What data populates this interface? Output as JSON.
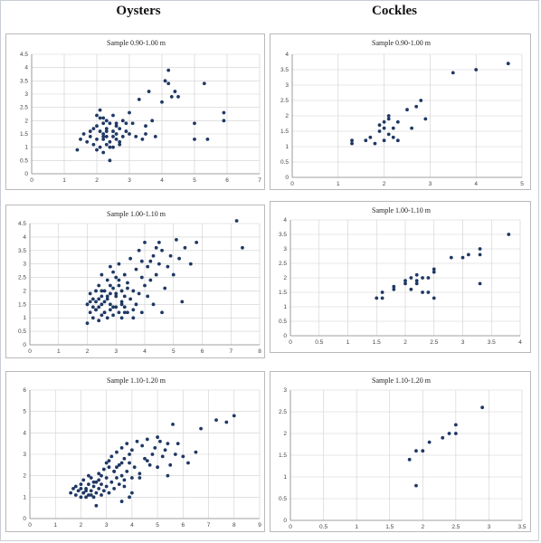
{
  "headers": {
    "left": "Oysters",
    "right": "Cockles"
  },
  "colors": {
    "point": "#1f3864",
    "grid": "#cfcfcf",
    "axis": "#8a8a8a",
    "border": "#b9b9b9"
  },
  "chart_data": [
    {
      "type": "scatter",
      "title": "Sample 0.90-1.00 m",
      "species": "Oysters",
      "xlim": [
        0,
        7
      ],
      "ylim": [
        0,
        4.5
      ],
      "xticks": [
        0,
        1,
        2,
        3,
        4,
        5,
        6,
        7
      ],
      "yticks": [
        0,
        0.5,
        1,
        1.5,
        2,
        2.5,
        3,
        3.5,
        4,
        4.5
      ],
      "ytick_labels": [
        "0",
        "0.5",
        "1",
        "1.5",
        "2",
        "2.5",
        "3",
        "3.5",
        "4",
        "4.5"
      ],
      "x": [
        1.4,
        1.5,
        1.6,
        1.7,
        1.8,
        1.8,
        1.9,
        1.9,
        2.0,
        2.0,
        2.0,
        2.1,
        2.1,
        2.1,
        2.2,
        2.2,
        2.2,
        2.2,
        2.3,
        2.3,
        2.3,
        2.3,
        2.4,
        2.4,
        2.4,
        2.5,
        2.5,
        2.5,
        2.6,
        2.6,
        2.6,
        2.7,
        2.7,
        2.8,
        2.8,
        2.9,
        2.9,
        3.0,
        3.0,
        3.1,
        3.2,
        3.3,
        3.4,
        3.5,
        3.5,
        3.6,
        3.7,
        3.8,
        4.0,
        4.1,
        4.2,
        4.2,
        4.3,
        4.4,
        4.5,
        5.0,
        5.0,
        5.3,
        5.4,
        5.9,
        5.9,
        2.0,
        2.1,
        2.2,
        2.3,
        2.5,
        2.7,
        2.4,
        2.6,
        2.2
      ],
      "y": [
        0.9,
        1.3,
        1.5,
        1.2,
        1.6,
        1.4,
        1.1,
        1.7,
        0.9,
        1.3,
        1.8,
        1.0,
        1.6,
        2.1,
        0.8,
        1.3,
        1.9,
        1.5,
        1.1,
        1.7,
        2.0,
        1.4,
        0.5,
        1.2,
        1.9,
        1.0,
        1.6,
        2.2,
        1.3,
        1.8,
        1.5,
        1.1,
        1.7,
        1.4,
        2.0,
        1.6,
        1.9,
        1.5,
        2.3,
        1.9,
        1.4,
        2.8,
        1.3,
        1.5,
        1.8,
        3.1,
        2.0,
        1.4,
        2.7,
        3.5,
        3.9,
        3.4,
        2.9,
        3.1,
        2.9,
        1.9,
        1.3,
        3.4,
        1.3,
        2.3,
        2.0,
        2.2,
        2.4,
        2.1,
        1.6,
        1.4,
        1.2,
        1.0,
        1.9,
        1.4
      ]
    },
    {
      "type": "scatter",
      "title": "Sample 0.90-1.00 m",
      "species": "Cockles",
      "xlim": [
        0,
        5
      ],
      "ylim": [
        0,
        4
      ],
      "xticks": [
        0,
        1,
        2,
        3,
        4,
        5
      ],
      "yticks": [
        0,
        0.5,
        1,
        1.5,
        2,
        2.5,
        3,
        3.5,
        4
      ],
      "ytick_labels": [
        "0",
        "0.5",
        "1",
        "1.5",
        "2",
        "2.5",
        "3",
        "3.5",
        "4"
      ],
      "x": [
        1.3,
        1.3,
        1.6,
        1.7,
        1.8,
        1.9,
        1.9,
        2.0,
        2.0,
        2.0,
        2.1,
        2.1,
        2.1,
        2.2,
        2.2,
        2.3,
        2.3,
        2.5,
        2.6,
        2.7,
        2.8,
        2.9,
        3.5,
        4.0,
        4.7
      ],
      "y": [
        1.2,
        1.1,
        1.2,
        1.3,
        1.1,
        1.5,
        1.7,
        1.8,
        1.6,
        1.2,
        1.9,
        1.4,
        2.0,
        1.3,
        1.6,
        1.8,
        1.2,
        2.2,
        1.6,
        2.3,
        2.5,
        1.9,
        3.4,
        3.5,
        3.7
      ]
    },
    {
      "type": "scatter",
      "title": "Sample 1.00-1.10 m",
      "species": "Oysters",
      "xlim": [
        0,
        8
      ],
      "ylim": [
        0,
        4.5
      ],
      "xticks": [
        0,
        1,
        2,
        3,
        4,
        5,
        6,
        7,
        8
      ],
      "yticks": [
        0,
        0.5,
        1,
        1.5,
        2,
        2.5,
        3,
        3.5,
        4,
        4.5
      ],
      "ytick_labels": [
        "0",
        "0.5",
        "1",
        "1.5",
        "2",
        "2.5",
        "3",
        "3.5",
        "4",
        "4.5"
      ],
      "x": [
        2.0,
        2.0,
        2.1,
        2.1,
        2.2,
        2.2,
        2.3,
        2.3,
        2.3,
        2.4,
        2.4,
        2.4,
        2.5,
        2.5,
        2.5,
        2.6,
        2.6,
        2.6,
        2.7,
        2.7,
        2.7,
        2.8,
        2.8,
        2.8,
        2.9,
        2.9,
        2.9,
        3.0,
        3.0,
        3.0,
        3.1,
        3.1,
        3.1,
        3.2,
        3.2,
        3.2,
        3.3,
        3.3,
        3.3,
        3.4,
        3.4,
        3.5,
        3.5,
        3.6,
        3.6,
        3.7,
        3.7,
        3.8,
        3.8,
        3.9,
        3.9,
        4.0,
        4.0,
        4.1,
        4.1,
        4.2,
        4.2,
        4.3,
        4.3,
        4.4,
        4.5,
        4.5,
        4.6,
        4.7,
        4.8,
        4.9,
        5.0,
        5.1,
        5.2,
        5.4,
        5.6,
        5.8,
        7.2,
        7.4,
        2.2,
        2.4,
        2.6,
        2.8,
        3.0,
        3.2,
        3.4,
        2.1,
        2.3,
        2.5,
        2.7,
        2.9,
        3.1,
        3.3,
        3.6,
        4.6,
        5.3,
        3.9,
        4.4,
        2.5,
        2.8
      ],
      "y": [
        0.8,
        1.5,
        1.2,
        1.9,
        1.0,
        1.7,
        1.3,
        2.0,
        1.6,
        0.9,
        1.4,
        2.2,
        1.1,
        1.8,
        1.5,
        1.2,
        2.0,
        1.6,
        1.0,
        1.7,
        2.4,
        1.3,
        1.9,
        1.5,
        1.1,
        2.1,
        2.7,
        1.4,
        1.8,
        2.5,
        1.2,
        2.2,
        3.0,
        1.6,
        2.0,
        1.0,
        1.4,
        2.6,
        1.8,
        1.2,
        2.3,
        1.7,
        3.2,
        1.3,
        2.0,
        1.5,
        2.8,
        1.9,
        3.5,
        1.2,
        2.5,
        2.2,
        3.8,
        1.8,
        2.9,
        2.4,
        3.1,
        1.5,
        3.3,
        2.6,
        3.0,
        3.8,
        3.5,
        2.1,
        2.9,
        3.3,
        2.6,
        3.9,
        3.2,
        3.6,
        3.0,
        3.8,
        4.6,
        3.6,
        1.4,
        1.7,
        1.2,
        2.2,
        1.9,
        1.5,
        2.1,
        1.6,
        1.3,
        2.0,
        1.8,
        1.4,
        2.4,
        1.2,
        1.0,
        1.2,
        1.6,
        3.1,
        3.6,
        2.6,
        2.9
      ]
    },
    {
      "type": "scatter",
      "title": "Sample 1.00-1.10 m",
      "species": "Cockles",
      "xlim": [
        0,
        4
      ],
      "ylim": [
        0,
        4
      ],
      "xticks": [
        0,
        0.5,
        1,
        1.5,
        2,
        2.5,
        3,
        3.5,
        4
      ],
      "yticks": [
        0,
        0.5,
        1,
        1.5,
        2,
        2.5,
        3,
        3.5,
        4
      ],
      "xtick_labels": [
        "0",
        "0.5",
        "1",
        "1.5",
        "2",
        "2.5",
        "3",
        "3.5",
        "4"
      ],
      "ytick_labels": [
        "0",
        "0.5",
        "1",
        "1.5",
        "2",
        "2.5",
        "3",
        "3.5",
        "4"
      ],
      "x": [
        1.5,
        1.6,
        1.6,
        1.8,
        1.8,
        2.0,
        2.0,
        2.1,
        2.1,
        2.2,
        2.2,
        2.2,
        2.3,
        2.3,
        2.4,
        2.4,
        2.5,
        2.5,
        2.5,
        2.8,
        3.0,
        3.1,
        3.3,
        3.3,
        3.3,
        3.8
      ],
      "y": [
        1.3,
        1.3,
        1.5,
        1.6,
        1.7,
        1.8,
        1.9,
        1.6,
        2.0,
        1.8,
        1.9,
        2.1,
        1.5,
        2.0,
        1.5,
        2.0,
        2.2,
        2.3,
        1.3,
        2.7,
        2.7,
        2.8,
        2.8,
        3.0,
        1.8,
        3.5
      ]
    },
    {
      "type": "scatter",
      "title": "Sample 1.10-1.20 m",
      "species": "Oysters",
      "xlim": [
        0,
        9
      ],
      "ylim": [
        0,
        6
      ],
      "xticks": [
        0,
        1,
        2,
        3,
        4,
        5,
        6,
        7,
        8,
        9
      ],
      "yticks": [
        0,
        1,
        2,
        3,
        4,
        5,
        6
      ],
      "ytick_labels": [
        "0",
        "1",
        "2",
        "3",
        "4",
        "5",
        "6"
      ],
      "x": [
        1.6,
        1.7,
        1.8,
        1.9,
        2.0,
        2.0,
        2.1,
        2.1,
        2.2,
        2.2,
        2.3,
        2.3,
        2.3,
        2.4,
        2.4,
        2.5,
        2.5,
        2.6,
        2.6,
        2.7,
        2.7,
        2.8,
        2.8,
        2.9,
        2.9,
        3.0,
        3.0,
        3.0,
        3.1,
        3.1,
        3.2,
        3.2,
        3.3,
        3.3,
        3.4,
        3.4,
        3.5,
        3.5,
        3.6,
        3.6,
        3.7,
        3.7,
        3.8,
        3.8,
        3.9,
        3.9,
        4.0,
        4.0,
        4.1,
        4.2,
        4.3,
        4.4,
        4.5,
        4.6,
        4.7,
        4.8,
        4.9,
        5.0,
        5.1,
        5.2,
        5.3,
        5.4,
        5.5,
        5.6,
        5.7,
        5.8,
        6.0,
        6.2,
        6.5,
        6.7,
        7.3,
        7.7,
        8.0,
        2.2,
        2.5,
        2.8,
        3.1,
        3.4,
        3.7,
        4.0,
        2.0,
        2.4,
        2.7,
        3.3,
        3.6,
        4.3,
        4.6,
        5.0,
        5.4,
        3.9,
        3.6,
        2.6,
        1.8,
        2.1
      ],
      "y": [
        1.2,
        1.4,
        1.1,
        1.3,
        1.0,
        1.6,
        1.2,
        1.8,
        1.0,
        1.4,
        1.1,
        1.6,
        2.0,
        1.3,
        1.9,
        1.0,
        1.5,
        1.2,
        1.7,
        1.4,
        2.1,
        1.1,
        1.6,
        1.3,
        2.3,
        1.5,
        1.9,
        2.6,
        1.2,
        2.4,
        1.7,
        2.9,
        1.4,
        2.2,
        1.9,
        3.1,
        1.6,
        2.5,
        2.0,
        3.3,
        1.8,
        2.8,
        2.2,
        3.5,
        2.6,
        3.0,
        1.9,
        3.2,
        2.4,
        3.6,
        2.1,
        3.4,
        2.8,
        3.7,
        2.5,
        3.0,
        3.3,
        2.4,
        3.6,
        2.9,
        3.2,
        3.5,
        2.5,
        4.4,
        3.0,
        3.5,
        2.9,
        2.6,
        3.1,
        4.2,
        4.6,
        4.5,
        4.8,
        1.3,
        1.7,
        2.0,
        2.7,
        2.4,
        1.5,
        1.2,
        1.4,
        1.1,
        1.8,
        2.2,
        2.6,
        1.9,
        2.7,
        3.8,
        2.0,
        1.0,
        0.8,
        0.6,
        1.5,
        1.2
      ]
    },
    {
      "type": "scatter",
      "title": "Sample 1.10-1.20 m",
      "species": "Cockles",
      "xlim": [
        0,
        3.5
      ],
      "ylim": [
        0,
        3
      ],
      "xticks": [
        0,
        0.5,
        1,
        1.5,
        2,
        2.5,
        3,
        3.5
      ],
      "yticks": [
        0,
        0.5,
        1,
        1.5,
        2,
        2.5,
        3
      ],
      "xtick_labels": [
        "0",
        "0.5",
        "1",
        "1.5",
        "2",
        "2.5",
        "3",
        "3.5"
      ],
      "ytick_labels": [
        "0",
        "0.5",
        "1",
        "1.5",
        "2",
        "2.5",
        "3"
      ],
      "x": [
        1.8,
        1.9,
        1.9,
        2.0,
        2.1,
        2.3,
        2.4,
        2.5,
        2.5,
        2.9
      ],
      "y": [
        1.4,
        1.6,
        0.8,
        1.6,
        1.8,
        1.9,
        2.0,
        2.0,
        2.2,
        2.6
      ]
    }
  ]
}
